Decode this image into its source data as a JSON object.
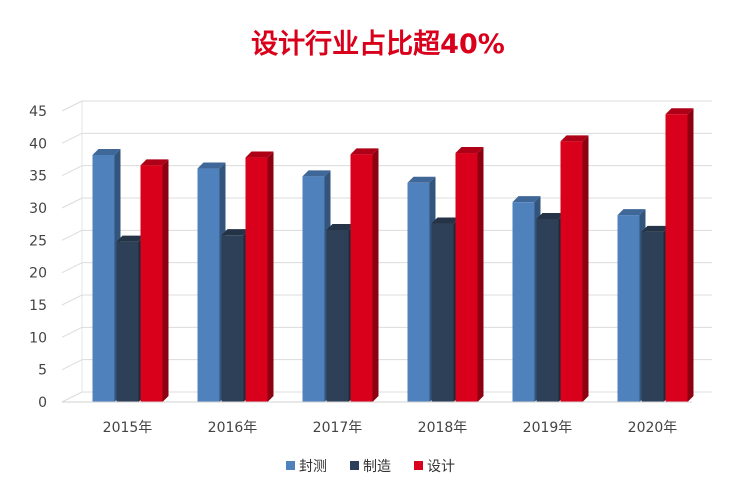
{
  "chart_data": {
    "type": "bar",
    "title": "设计行业占比超40%",
    "categories": [
      "2015年",
      "2016年",
      "2017年",
      "2018年",
      "2019年",
      "2020年"
    ],
    "series": [
      {
        "name": "封测",
        "color": "#4f81bd",
        "values": [
          38.2,
          36.1,
          34.9,
          33.9,
          30.9,
          28.9
        ]
      },
      {
        "name": "制造",
        "color": "#2e4057",
        "values": [
          24.8,
          25.8,
          26.6,
          27.6,
          28.3,
          26.3
        ]
      },
      {
        "name": "设计",
        "color": "#d9001b",
        "values": [
          36.6,
          37.8,
          38.3,
          38.5,
          40.3,
          44.5
        ]
      }
    ],
    "ylim": [
      0,
      45
    ],
    "yticks": [
      0,
      5,
      10,
      15,
      20,
      25,
      30,
      35,
      40,
      45
    ],
    "grid": true,
    "legend": "bottom"
  }
}
